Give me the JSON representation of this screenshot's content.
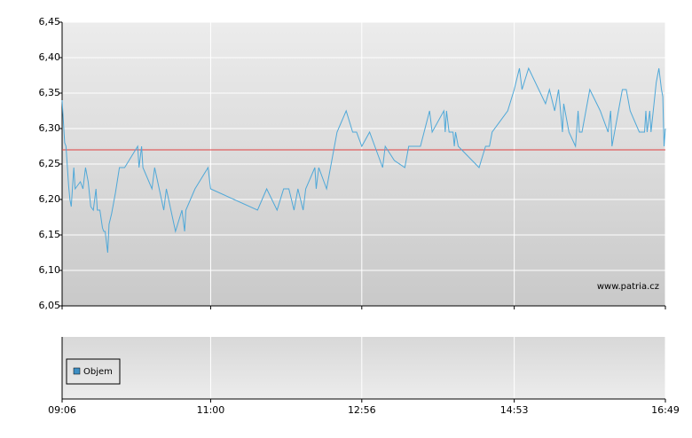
{
  "chart_data": {
    "type": "line",
    "watermark": "www.patria.cz",
    "x": [
      "09:06",
      "09:08",
      "09:09",
      "09:11",
      "09:12",
      "09:13",
      "09:15",
      "09:16",
      "09:18",
      "09:20",
      "09:22",
      "09:24",
      "09:26",
      "09:28",
      "09:30",
      "09:32",
      "09:33",
      "09:35",
      "09:37",
      "09:38",
      "09:39",
      "09:41",
      "09:42",
      "09:44",
      "09:47",
      "09:50",
      "09:54",
      "10:04",
      "10:05",
      "10:07",
      "10:08",
      "10:15",
      "10:17",
      "10:24",
      "10:26",
      "10:33",
      "10:38",
      "10:40",
      "10:41",
      "10:48",
      "10:58",
      "11:00",
      "11:36",
      "11:43",
      "11:51",
      "11:56",
      "12:00",
      "12:04",
      "12:07",
      "12:11",
      "12:13",
      "12:20",
      "12:21",
      "12:23",
      "12:29",
      "12:37",
      "12:44",
      "12:49",
      "12:52",
      "12:56",
      "13:02",
      "13:06",
      "13:12",
      "13:14",
      "13:21",
      "13:29",
      "13:32",
      "13:38",
      "13:41",
      "13:48",
      "13:50",
      "13:59",
      "14:00",
      "14:01",
      "14:03",
      "14:06",
      "14:07",
      "14:08",
      "14:10",
      "14:26",
      "14:31",
      "14:34",
      "14:36",
      "14:48",
      "14:53",
      "14:57",
      "14:59",
      "15:04",
      "15:17",
      "15:20",
      "15:24",
      "15:27",
      "15:30",
      "15:31",
      "15:35",
      "15:40",
      "15:42",
      "15:43",
      "15:45",
      "15:51",
      "15:59",
      "16:05",
      "16:07",
      "16:08",
      "16:16",
      "16:19",
      "16:22",
      "16:29",
      "16:33",
      "16:34",
      "16:35",
      "16:37",
      "16:38",
      "16:42",
      "16:44",
      "16:46",
      "16:47",
      "16:48",
      "16:49"
    ],
    "series": [
      {
        "color": "#4fa8d8",
        "values": [
          6.34,
          6.28,
          6.275,
          6.22,
          6.2,
          6.19,
          6.245,
          6.215,
          6.22,
          6.225,
          6.215,
          6.245,
          6.225,
          6.19,
          6.185,
          6.215,
          6.185,
          6.185,
          6.16,
          6.155,
          6.155,
          6.125,
          6.165,
          6.18,
          6.21,
          6.245,
          6.245,
          6.275,
          6.245,
          6.275,
          6.245,
          6.215,
          6.245,
          6.185,
          6.215,
          6.155,
          6.185,
          6.155,
          6.185,
          6.215,
          6.245,
          6.215,
          6.185,
          6.215,
          6.185,
          6.215,
          6.215,
          6.185,
          6.215,
          6.185,
          6.215,
          6.245,
          6.215,
          6.245,
          6.215,
          6.295,
          6.325,
          6.295,
          6.295,
          6.275,
          6.295,
          6.275,
          6.245,
          6.275,
          6.255,
          6.245,
          6.275,
          6.275,
          6.275,
          6.325,
          6.295,
          6.325,
          6.295,
          6.325,
          6.295,
          6.295,
          6.275,
          6.295,
          6.275,
          6.245,
          6.275,
          6.275,
          6.295,
          6.325,
          6.355,
          6.385,
          6.355,
          6.385,
          6.335,
          6.355,
          6.325,
          6.355,
          6.295,
          6.335,
          6.295,
          6.275,
          6.325,
          6.295,
          6.295,
          6.355,
          6.325,
          6.295,
          6.325,
          6.275,
          6.355,
          6.355,
          6.325,
          6.295,
          6.295,
          6.325,
          6.295,
          6.325,
          6.295,
          6.365,
          6.385,
          6.355,
          6.345,
          6.275,
          6.3
        ]
      }
    ],
    "reference_line": 6.27,
    "reference_color": "#e04040",
    "xlim": [
      "09:06",
      "16:49"
    ],
    "xticks": [
      "09:06",
      "11:00",
      "12:56",
      "14:53",
      "16:49"
    ],
    "ylim": [
      6.05,
      6.45
    ],
    "yticks": [
      {
        "value": 6.05,
        "label": "6,05"
      },
      {
        "value": 6.1,
        "label": "6,10"
      },
      {
        "value": 6.15,
        "label": "6,15"
      },
      {
        "value": 6.2,
        "label": "6,20"
      },
      {
        "value": 6.25,
        "label": "6,25"
      },
      {
        "value": 6.3,
        "label": "6,30"
      },
      {
        "value": 6.35,
        "label": "6,35"
      },
      {
        "value": 6.4,
        "label": "6,40"
      },
      {
        "value": 6.45,
        "label": "6,45"
      }
    ],
    "grid": true,
    "volume_panel": {
      "legend": "Objem",
      "color": "#3d8fc4"
    }
  }
}
